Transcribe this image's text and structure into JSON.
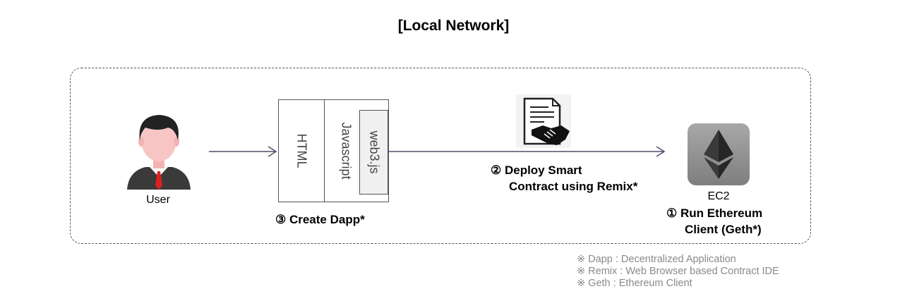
{
  "title": "[Local Network]",
  "user": {
    "label": "User",
    "icon": "user-avatar-icon"
  },
  "dapp_stack": {
    "layers": [
      "HTML",
      "Javascript",
      "web3.js"
    ]
  },
  "contract_icon": "contract-handshake-icon",
  "server": {
    "label": "EC2",
    "icon": "ethereum-logo-icon"
  },
  "steps": {
    "create_dapp": "③ Create Dapp*",
    "deploy": {
      "line1": "② Deploy Smart",
      "line2": "Contract using Remix*"
    },
    "run_client": {
      "line1": "① Run Ethereum",
      "line2": "Client (Geth*)"
    }
  },
  "notes": [
    "※ Dapp : Decentralized Application",
    "※ Remix : Web Browser based Contract IDE",
    "※ Geth : Ethereum Client"
  ],
  "colors": {
    "arrow": "#4a4f6a",
    "tie": "#e02020",
    "server_tile": "#909090"
  }
}
